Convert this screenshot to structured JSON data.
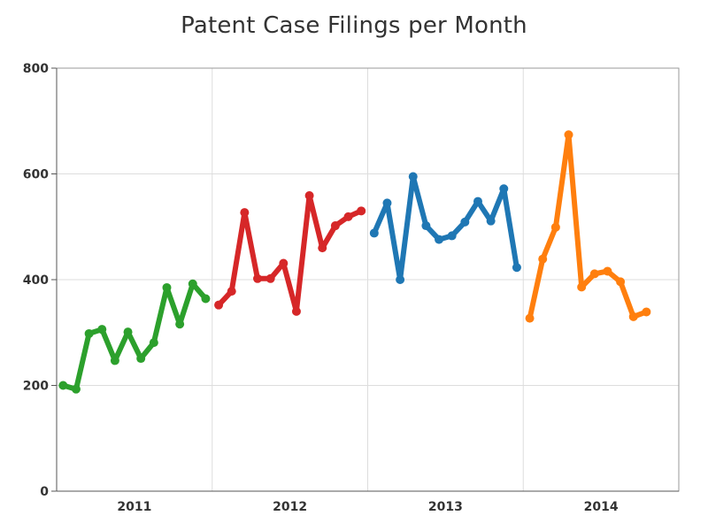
{
  "chart_data": {
    "type": "line",
    "title": "Patent Case Filings per Month",
    "xlabel": "",
    "ylabel": "",
    "ylim": [
      0,
      800
    ],
    "yticks": [
      0,
      200,
      400,
      600,
      800
    ],
    "xticks": [
      "2011",
      "2012",
      "2013",
      "2014"
    ],
    "grid": true,
    "legend": "none",
    "series": [
      {
        "year": "2011",
        "color": "#2ca02c",
        "values": [
          200,
          193,
          298,
          306,
          247,
          301,
          251,
          281,
          385,
          316,
          392,
          364
        ]
      },
      {
        "year": "2012",
        "color": "#d62728",
        "values": [
          352,
          378,
          527,
          402,
          402,
          431,
          340,
          559,
          460,
          502,
          519,
          530
        ]
      },
      {
        "year": "2013",
        "color": "#1f77b4",
        "values": [
          488,
          545,
          400,
          595,
          502,
          476,
          483,
          509,
          548,
          511,
          572,
          423
        ]
      },
      {
        "year": "2014",
        "color": "#ff7f0e",
        "values": [
          327,
          439,
          499,
          674,
          386,
          411,
          416,
          396,
          330,
          339
        ]
      }
    ]
  }
}
